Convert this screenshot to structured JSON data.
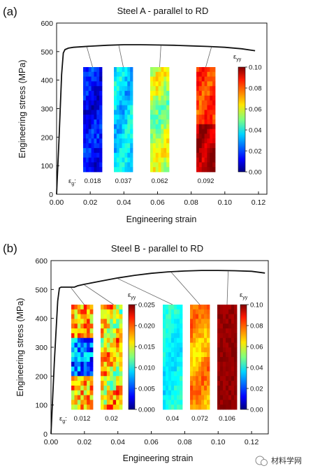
{
  "chart_data": [
    {
      "panel": "(a)",
      "type": "line",
      "title": "Steel A - parallel to RD",
      "xlabel": "Engineering strain",
      "ylabel": "Engineering stress (MPa)",
      "xlim": [
        0.0,
        0.125
      ],
      "ylim": [
        0,
        600
      ],
      "xticks": [
        "0.00",
        "0.02",
        "0.04",
        "0.06",
        "0.08",
        "0.10",
        "0.12"
      ],
      "yticks": [
        "0",
        "100",
        "200",
        "300",
        "400",
        "500",
        "600"
      ],
      "x": [
        0.0,
        0.0015,
        0.003,
        0.004,
        0.005,
        0.007,
        0.01,
        0.02,
        0.03,
        0.04,
        0.05,
        0.06,
        0.07,
        0.08,
        0.09,
        0.1,
        0.11,
        0.118
      ],
      "y": [
        0,
        200,
        420,
        495,
        507,
        512,
        515,
        519,
        522,
        524,
        524,
        523,
        522,
        520,
        518,
        515,
        510,
        503
      ],
      "strain_maps": {
        "eg_symbol": "ε",
        "eg_sub": "g",
        "eg_values": [
          "0.018",
          "0.037",
          "0.062",
          "0.092"
        ],
        "colorbar_symbol": "ε",
        "colorbar_sub": "yy",
        "colorbar_ticks": [
          "0.00",
          "0.02",
          "0.04",
          "0.06",
          "0.08",
          "0.10"
        ]
      }
    },
    {
      "panel": "(b)",
      "type": "line",
      "title": "Steel B - parallel to RD",
      "xlabel": "Engineering strain",
      "ylabel": "Engineering stress (MPa)",
      "xlim": [
        0.0,
        0.13
      ],
      "ylim": [
        0,
        600
      ],
      "xticks": [
        "0.00",
        "0.02",
        "0.04",
        "0.06",
        "0.08",
        "0.10",
        "0.12"
      ],
      "yticks": [
        "0",
        "100",
        "200",
        "300",
        "400",
        "500",
        "600"
      ],
      "x": [
        0.0,
        0.002,
        0.004,
        0.005,
        0.006,
        0.01,
        0.012,
        0.014,
        0.016,
        0.02,
        0.03,
        0.04,
        0.05,
        0.06,
        0.07,
        0.08,
        0.09,
        0.1,
        0.11,
        0.12,
        0.128
      ],
      "y": [
        0,
        250,
        460,
        505,
        508,
        508,
        508,
        508,
        513,
        518,
        529,
        540,
        549,
        556,
        561,
        564,
        566,
        566,
        565,
        563,
        557
      ],
      "strain_maps": {
        "eg_symbol": "ε",
        "eg_sub": "g",
        "eg_values": [
          "0.012",
          "0.02",
          "0.04",
          "0.072",
          "0.106"
        ],
        "colorbar1_symbol": "ε",
        "colorbar1_sub": "yy",
        "colorbar1_ticks": [
          "0.000",
          "0.005",
          "0.010",
          "0.015",
          "0.020",
          "0.025"
        ],
        "colorbar2_symbol": "ε",
        "colorbar2_sub": "yy",
        "colorbar2_ticks": [
          "0.00",
          "0.02",
          "0.04",
          "0.06",
          "0.08",
          "0.10"
        ]
      }
    }
  ],
  "watermark": "材料学网"
}
